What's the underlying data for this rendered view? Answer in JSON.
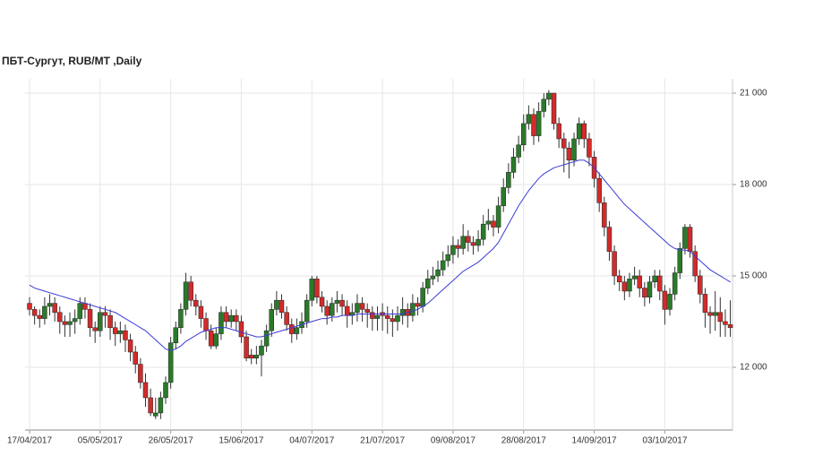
{
  "chart_data": {
    "type": "candlestick",
    "title": "ПБТ-Сургут,  RUB/MT ,Daily",
    "up_color": "#2b7a2b",
    "down_color": "#d42a2a",
    "ma_color": "#3b3bd6",
    "grid": true,
    "ylim": [
      9940,
      21470
    ],
    "yticks": [
      {
        "value": 12000,
        "label": "12 000"
      },
      {
        "value": 15000,
        "label": "15 000"
      },
      {
        "value": 18000,
        "label": "18 000"
      },
      {
        "value": 21000,
        "label": "21 000"
      }
    ],
    "categories": [
      "17/04/2017",
      null,
      null,
      null,
      null,
      null,
      null,
      null,
      null,
      null,
      null,
      null,
      null,
      null,
      "05/05/2017",
      null,
      null,
      null,
      null,
      null,
      null,
      null,
      null,
      null,
      null,
      null,
      null,
      null,
      "26/05/2017",
      null,
      null,
      null,
      null,
      null,
      null,
      null,
      null,
      null,
      null,
      null,
      null,
      null,
      "15/06/2017",
      null,
      null,
      null,
      null,
      null,
      null,
      null,
      null,
      null,
      null,
      null,
      null,
      null,
      "04/07/2017",
      null,
      null,
      null,
      null,
      null,
      null,
      null,
      null,
      null,
      null,
      null,
      null,
      null,
      "21/07/2017",
      null,
      null,
      null,
      null,
      null,
      null,
      null,
      null,
      null,
      null,
      null,
      null,
      null,
      "09/08/2017",
      null,
      null,
      null,
      null,
      null,
      null,
      null,
      null,
      null,
      null,
      null,
      null,
      null,
      "28/08/2017",
      null,
      null,
      null,
      null,
      null,
      null,
      null,
      null,
      null,
      null,
      null,
      null,
      null,
      "14/09/2017",
      null,
      null,
      null,
      null,
      null,
      null,
      null,
      null,
      null,
      null,
      null,
      null,
      null,
      "03/10/2017",
      null,
      null,
      null,
      null,
      null,
      null,
      null,
      null,
      null,
      null,
      null,
      null,
      null
    ],
    "ohlc": [
      [
        14100,
        14300,
        13700,
        13900
      ],
      [
        13900,
        14000,
        13400,
        13700
      ],
      [
        13700,
        13900,
        13300,
        13600
      ],
      [
        13600,
        14300,
        13400,
        14000
      ],
      [
        14000,
        14400,
        13700,
        14100
      ],
      [
        14100,
        14300,
        13500,
        13800
      ],
      [
        13800,
        14000,
        13100,
        13500
      ],
      [
        13500,
        13700,
        13000,
        13400
      ],
      [
        13400,
        13800,
        13000,
        13500
      ],
      [
        13500,
        13900,
        13100,
        13600
      ],
      [
        13600,
        14300,
        13400,
        14100
      ],
      [
        14100,
        14300,
        13600,
        13900
      ],
      [
        13900,
        14100,
        13000,
        13300
      ],
      [
        13300,
        13500,
        12800,
        13200
      ],
      [
        13200,
        14000,
        13000,
        13800
      ],
      [
        13800,
        14000,
        13300,
        13700
      ],
      [
        13700,
        13900,
        12900,
        13300
      ],
      [
        13300,
        13500,
        12700,
        13100
      ],
      [
        13100,
        13500,
        12800,
        13200
      ],
      [
        13200,
        13400,
        12500,
        12900
      ],
      [
        12900,
        13100,
        12200,
        12500
      ],
      [
        12500,
        12700,
        11800,
        12100
      ],
      [
        12100,
        12300,
        11300,
        11500
      ],
      [
        11500,
        11800,
        10700,
        11000
      ],
      [
        11000,
        11300,
        10400,
        10500
      ],
      [
        10400,
        11000,
        10300,
        10500
      ],
      [
        10500,
        11200,
        10300,
        11000
      ],
      [
        11000,
        11700,
        10800,
        11500
      ],
      [
        11500,
        13000,
        11300,
        12800
      ],
      [
        12800,
        13500,
        12600,
        13300
      ],
      [
        13300,
        14100,
        13100,
        13900
      ],
      [
        13900,
        15100,
        13700,
        14800
      ],
      [
        14800,
        15000,
        14000,
        14200
      ],
      [
        14200,
        14400,
        13700,
        14000
      ],
      [
        14000,
        14200,
        13300,
        13600
      ],
      [
        13600,
        13800,
        12900,
        13200
      ],
      [
        13200,
        13400,
        12600,
        12700
      ],
      [
        12700,
        13300,
        12600,
        13100
      ],
      [
        13100,
        14000,
        12900,
        13800
      ],
      [
        13800,
        14000,
        13300,
        13500
      ],
      [
        13500,
        13900,
        13300,
        13700
      ],
      [
        13700,
        13900,
        13200,
        13500
      ],
      [
        13500,
        13700,
        12800,
        13000
      ],
      [
        13000,
        13200,
        12200,
        12300
      ],
      [
        12400,
        12600,
        12100,
        12300
      ],
      [
        12300,
        12700,
        12100,
        12400
      ],
      [
        12400,
        12900,
        11700,
        12700
      ],
      [
        12700,
        13400,
        12500,
        13200
      ],
      [
        13200,
        14100,
        13000,
        13900
      ],
      [
        13900,
        14500,
        13700,
        14200
      ],
      [
        14200,
        14400,
        13600,
        13800
      ],
      [
        13800,
        14000,
        13200,
        13400
      ],
      [
        13400,
        13600,
        12800,
        13100
      ],
      [
        13100,
        13600,
        12900,
        13300
      ],
      [
        13300,
        13800,
        13100,
        13500
      ],
      [
        13500,
        14400,
        13300,
        14200
      ],
      [
        14200,
        15000,
        14000,
        14900
      ],
      [
        14900,
        15000,
        14100,
        14300
      ],
      [
        14300,
        14500,
        13800,
        14000
      ],
      [
        14000,
        14200,
        13400,
        13700
      ],
      [
        13700,
        14300,
        13500,
        14100
      ],
      [
        14100,
        14500,
        13800,
        14200
      ],
      [
        14200,
        14400,
        13700,
        14000
      ],
      [
        14000,
        14200,
        13300,
        13700
      ],
      [
        13700,
        14100,
        13400,
        13800
      ],
      [
        13800,
        14400,
        13500,
        14100
      ],
      [
        14100,
        14300,
        13500,
        13900
      ],
      [
        13900,
        14100,
        13300,
        13800
      ],
      [
        13800,
        14000,
        13200,
        13600
      ],
      [
        13600,
        14000,
        13200,
        13700
      ],
      [
        13800,
        14100,
        13200,
        13700
      ],
      [
        13700,
        14000,
        13100,
        13600
      ],
      [
        13600,
        13900,
        13000,
        13500
      ],
      [
        13500,
        14000,
        13200,
        13700
      ],
      [
        13700,
        14300,
        13400,
        13900
      ],
      [
        13900,
        14100,
        13300,
        13700
      ],
      [
        13700,
        14400,
        13500,
        14100
      ],
      [
        14100,
        14300,
        13700,
        14000
      ],
      [
        14000,
        14800,
        13800,
        14600
      ],
      [
        14600,
        15200,
        14400,
        14900
      ],
      [
        14900,
        15300,
        14700,
        15000
      ],
      [
        15000,
        15500,
        14800,
        15200
      ],
      [
        15200,
        15800,
        15000,
        15500
      ],
      [
        15500,
        16000,
        15300,
        15700
      ],
      [
        15700,
        16300,
        15400,
        16000
      ],
      [
        16000,
        16200,
        15600,
        15900
      ],
      [
        15900,
        16700,
        15700,
        16300
      ],
      [
        16300,
        16500,
        15800,
        16100
      ],
      [
        16100,
        16300,
        15700,
        16000
      ],
      [
        16000,
        16500,
        15800,
        16200
      ],
      [
        16200,
        17000,
        16000,
        16700
      ],
      [
        16700,
        17200,
        16500,
        16800
      ],
      [
        16800,
        17000,
        16300,
        16600
      ],
      [
        16600,
        17600,
        16400,
        17300
      ],
      [
        17300,
        18200,
        17100,
        17900
      ],
      [
        17900,
        18700,
        17700,
        18400
      ],
      [
        18400,
        19200,
        18200,
        18900
      ],
      [
        18900,
        19600,
        18700,
        19300
      ],
      [
        19300,
        20300,
        19100,
        20000
      ],
      [
        20000,
        20600,
        19800,
        20300
      ],
      [
        20300,
        20500,
        19300,
        19600
      ],
      [
        19600,
        20700,
        19400,
        20400
      ],
      [
        20400,
        21000,
        20200,
        20800
      ],
      [
        20800,
        21100,
        20600,
        21000
      ],
      [
        21000,
        21000,
        19800,
        20000
      ],
      [
        20000,
        20200,
        19200,
        19500
      ],
      [
        19500,
        19700,
        18400,
        19200
      ],
      [
        19200,
        19400,
        18200,
        18800
      ],
      [
        18800,
        19700,
        18600,
        19500
      ],
      [
        19500,
        20200,
        19300,
        20000
      ],
      [
        20000,
        20100,
        19200,
        19500
      ],
      [
        19500,
        19700,
        18600,
        18900
      ],
      [
        18900,
        19100,
        17900,
        18200
      ],
      [
        18200,
        18400,
        17100,
        17400
      ],
      [
        17400,
        17600,
        16300,
        16600
      ],
      [
        16600,
        16800,
        15500,
        15800
      ],
      [
        15800,
        16000,
        14700,
        15000
      ],
      [
        15000,
        15200,
        14500,
        14800
      ],
      [
        14800,
        15000,
        14200,
        14500
      ],
      [
        14500,
        15100,
        14300,
        14900
      ],
      [
        14900,
        15300,
        14700,
        15000
      ],
      [
        15000,
        15200,
        14300,
        14600
      ],
      [
        14600,
        14800,
        14000,
        14300
      ],
      [
        14300,
        15000,
        14100,
        14800
      ],
      [
        14800,
        15200,
        14600,
        15000
      ],
      [
        15000,
        15200,
        14200,
        14500
      ],
      [
        14500,
        14700,
        13400,
        13900
      ],
      [
        13900,
        14600,
        13700,
        14400
      ],
      [
        14400,
        15300,
        14200,
        15100
      ],
      [
        15100,
        16100,
        14900,
        15900
      ],
      [
        15900,
        16700,
        15700,
        16600
      ],
      [
        16600,
        16700,
        15600,
        15800
      ],
      [
        15800,
        16000,
        14800,
        15000
      ],
      [
        15000,
        15200,
        14100,
        14400
      ],
      [
        14400,
        14600,
        13300,
        13800
      ],
      [
        13800,
        14000,
        13100,
        13700
      ],
      [
        13700,
        14500,
        13200,
        13800
      ],
      [
        13800,
        14300,
        13000,
        13500
      ],
      [
        13500,
        13900,
        13000,
        13400
      ],
      [
        13400,
        14200,
        13000,
        13300
      ]
    ],
    "ma": [
      14700,
      14600,
      14550,
      14500,
      14450,
      14400,
      14350,
      14300,
      14250,
      14200,
      14150,
      14100,
      14050,
      14000,
      13950,
      13900,
      13850,
      13800,
      13700,
      13600,
      13500,
      13400,
      13300,
      13200,
      13050,
      12900,
      12750,
      12600,
      12550,
      12600,
      12700,
      12850,
      12950,
      13050,
      13150,
      13200,
      13250,
      13300,
      13300,
      13300,
      13250,
      13200,
      13150,
      13100,
      13050,
      13000,
      13000,
      13050,
      13100,
      13150,
      13200,
      13250,
      13300,
      13350,
      13400,
      13450,
      13500,
      13550,
      13600,
      13600,
      13650,
      13650,
      13700,
      13700,
      13700,
      13750,
      13750,
      13750,
      13750,
      13750,
      13750,
      13750,
      13750,
      13750,
      13750,
      13800,
      13850,
      13900,
      14000,
      14100,
      14250,
      14400,
      14550,
      14700,
      14850,
      15000,
      15150,
      15250,
      15350,
      15450,
      15600,
      15750,
      15900,
      16100,
      16400,
      16700,
      17000,
      17300,
      17550,
      17800,
      18000,
      18200,
      18350,
      18450,
      18550,
      18600,
      18650,
      18700,
      18750,
      18800,
      18800,
      18700,
      18550,
      18350,
      18150,
      17950,
      17750,
      17550,
      17350,
      17200,
      17050,
      16900,
      16750,
      16600,
      16450,
      16300,
      16150,
      16000,
      15900,
      15850,
      15850,
      15800,
      15650,
      15500,
      15350,
      15200,
      15100,
      15000,
      14900,
      14800
    ]
  }
}
